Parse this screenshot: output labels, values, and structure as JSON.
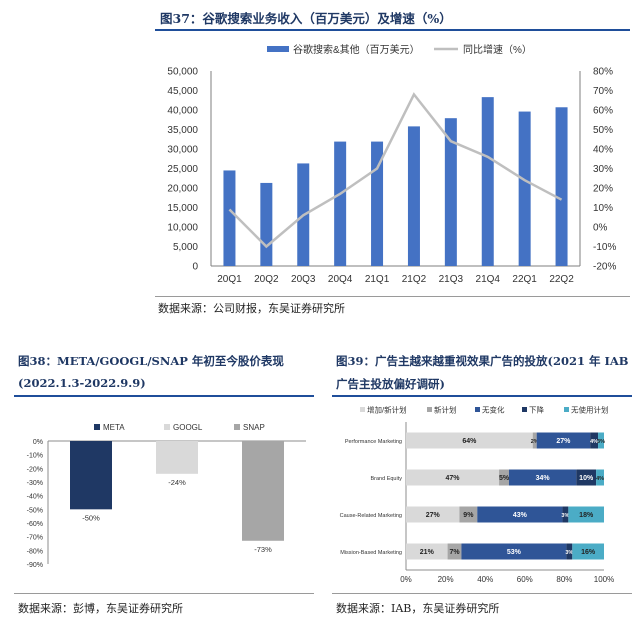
{
  "fig37": {
    "title": "图37：谷歌搜索业务收入（百万美元）及增速（%）",
    "source": "数据来源：公司财报，东吴证券研究所",
    "chart_data": {
      "type": "bar",
      "categories": [
        "20Q1",
        "20Q2",
        "20Q3",
        "20Q4",
        "21Q1",
        "21Q2",
        "21Q3",
        "21Q4",
        "22Q1",
        "22Q2"
      ],
      "series": [
        {
          "name": "谷歌搜索&其他（百万美元）",
          "type": "bar",
          "axis": "left",
          "color": "#4472c4",
          "values": [
            24500,
            21300,
            26300,
            31900,
            31900,
            35800,
            37900,
            43300,
            39600,
            40700
          ]
        },
        {
          "name": "同比增速（%）",
          "type": "line",
          "axis": "right",
          "color": "#bfbfbf",
          "values": [
            9,
            -10,
            6,
            17,
            30,
            68,
            44,
            36,
            24,
            14
          ]
        }
      ],
      "left_ticks": [
        "0",
        "5,000",
        "10,000",
        "15,000",
        "20,000",
        "25,000",
        "30,000",
        "35,000",
        "40,000",
        "45,000",
        "50,000"
      ],
      "right_ticks": [
        "-20%",
        "-10%",
        "0%",
        "10%",
        "20%",
        "30%",
        "40%",
        "50%",
        "60%",
        "70%",
        "80%"
      ],
      "ylim_left": [
        0,
        50000
      ],
      "ylim_right": [
        -20,
        80
      ],
      "legend_position": "top"
    }
  },
  "fig38": {
    "title_line1": "图38：META/GOOGL/SNAP 年初至今股价表现",
    "title_line2": "(2022.1.3-2022.9.9)",
    "source": "数据来源：彭博，东吴证券研究所",
    "chart_data": {
      "type": "bar",
      "categories": [
        "META",
        "GOOGL",
        "SNAP"
      ],
      "values": [
        -50,
        -24,
        -73
      ],
      "data_labels": [
        "-50%",
        "-24%",
        "-73%"
      ],
      "colors": [
        "#1f3864",
        "#d9d9d9",
        "#a6a6a6"
      ],
      "ticks": [
        "0%",
        "-10%",
        "-20%",
        "-30%",
        "-40%",
        "-50%",
        "-60%",
        "-70%",
        "-80%",
        "-90%"
      ],
      "ylim": [
        -90,
        0
      ],
      "legend_position": "top"
    }
  },
  "fig39": {
    "title_line1": "图39：广告主越来越重视效果广告的投放(2021 年 IAB",
    "title_line2": "广告主投放偏好调研)",
    "source": "数据来源：IAB，东吴证券研究所",
    "chart_data": {
      "type": "bar",
      "orientation": "horizontal-stacked-100",
      "categories": [
        "Performance Marketing",
        "Brand Equity",
        "Cause-Related Marketing",
        "Mission-Based Marketing"
      ],
      "series": [
        {
          "name": "增加/新计划",
          "color": "#d9d9d9",
          "values": [
            64,
            47,
            27,
            21
          ],
          "labels": [
            "64%",
            "47%",
            "27%",
            "21%"
          ]
        },
        {
          "name": "新计划",
          "color": "#a6a6a6",
          "values": [
            2,
            5,
            9,
            7
          ],
          "labels": [
            "2%",
            "5%",
            "9%",
            "7%"
          ]
        },
        {
          "name": "无变化",
          "color": "#2f5597",
          "values": [
            27,
            34,
            43,
            53
          ],
          "labels": [
            "27%",
            "34%",
            "43%",
            "53%"
          ]
        },
        {
          "name": "下降",
          "color": "#1f3864",
          "values": [
            4,
            10,
            3,
            3
          ],
          "labels": [
            "4%",
            "10%",
            "3%",
            "3%"
          ]
        },
        {
          "name": "无使用计划",
          "color": "#4bacc6",
          "values": [
            3,
            4,
            18,
            16
          ],
          "labels": [
            "3%",
            "4%",
            "18%",
            "16%"
          ]
        }
      ],
      "ticks": [
        "0%",
        "20%",
        "40%",
        "60%",
        "80%",
        "100%"
      ],
      "xlim": [
        0,
        100
      ],
      "legend_position": "top"
    }
  }
}
